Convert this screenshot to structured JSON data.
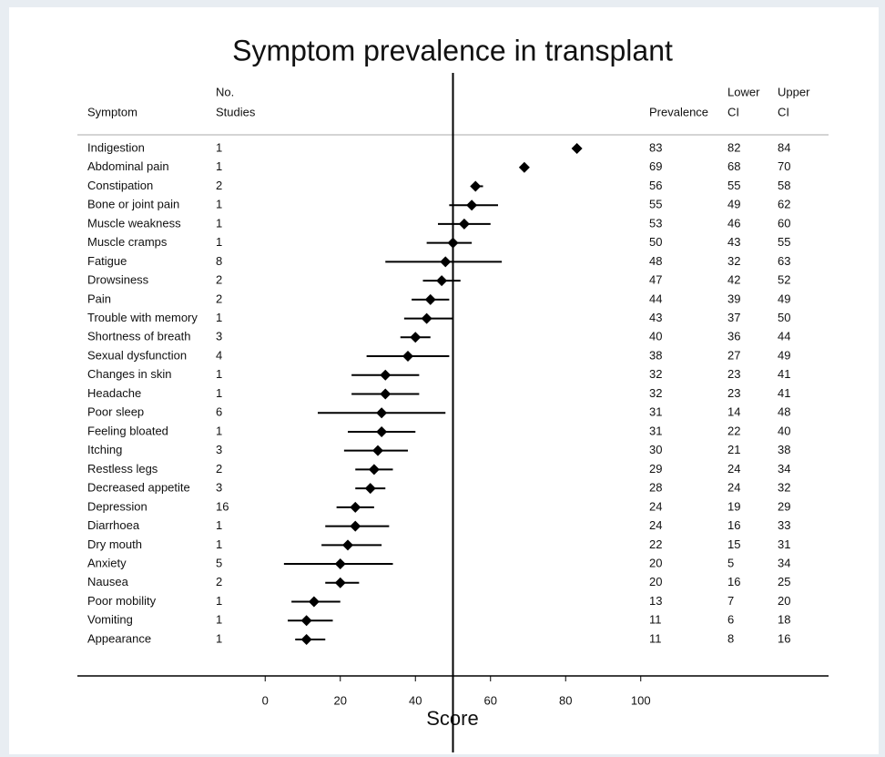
{
  "chart_data": {
    "type": "forest",
    "title": "Symptom prevalence in transplant",
    "x_label": "Score",
    "columns": {
      "symptom": "Symptom",
      "studies": [
        "No.",
        "Studies"
      ],
      "prevalence": "Prevalence",
      "lower": [
        "Lower",
        "CI"
      ],
      "upper": [
        "Upper",
        "CI"
      ]
    },
    "categories": [
      "Indigestion",
      "Abdominal pain",
      "Constipation",
      "Bone or joint pain",
      "Muscle weakness",
      "Muscle cramps",
      "Fatigue",
      "Drowsiness",
      "Pain",
      "Trouble with memory",
      "Shortness of breath",
      "Sexual dysfunction",
      "Changes in skin",
      "Headache",
      "Poor sleep",
      "Feeling bloated",
      "Itching",
      "Restless legs",
      "Decreased appetite",
      "Depression",
      "Diarrhoea",
      "Dry mouth",
      "Anxiety",
      "Nausea",
      "Poor mobility",
      "Vomiting",
      "Appearance"
    ],
    "studies": [
      1,
      1,
      2,
      1,
      1,
      1,
      8,
      2,
      2,
      1,
      3,
      4,
      1,
      1,
      6,
      1,
      3,
      2,
      3,
      16,
      1,
      1,
      5,
      2,
      1,
      1,
      1
    ],
    "values": [
      83,
      69,
      56,
      55,
      53,
      50,
      48,
      47,
      44,
      43,
      40,
      38,
      32,
      32,
      31,
      31,
      30,
      29,
      28,
      24,
      24,
      22,
      20,
      20,
      13,
      11,
      11
    ],
    "lower": [
      82,
      68,
      55,
      49,
      46,
      43,
      32,
      42,
      39,
      37,
      36,
      27,
      23,
      23,
      14,
      22,
      21,
      24,
      24,
      19,
      16,
      15,
      5,
      16,
      7,
      6,
      8
    ],
    "upper": [
      84,
      70,
      58,
      62,
      60,
      55,
      63,
      52,
      49,
      50,
      44,
      49,
      41,
      41,
      48,
      40,
      38,
      34,
      32,
      29,
      33,
      31,
      34,
      25,
      20,
      18,
      16
    ],
    "reference_line": 50,
    "color": "#000000",
    "xlim": [
      -50,
      150
    ],
    "xticks": [
      0,
      20,
      40,
      60,
      80,
      100
    ]
  }
}
